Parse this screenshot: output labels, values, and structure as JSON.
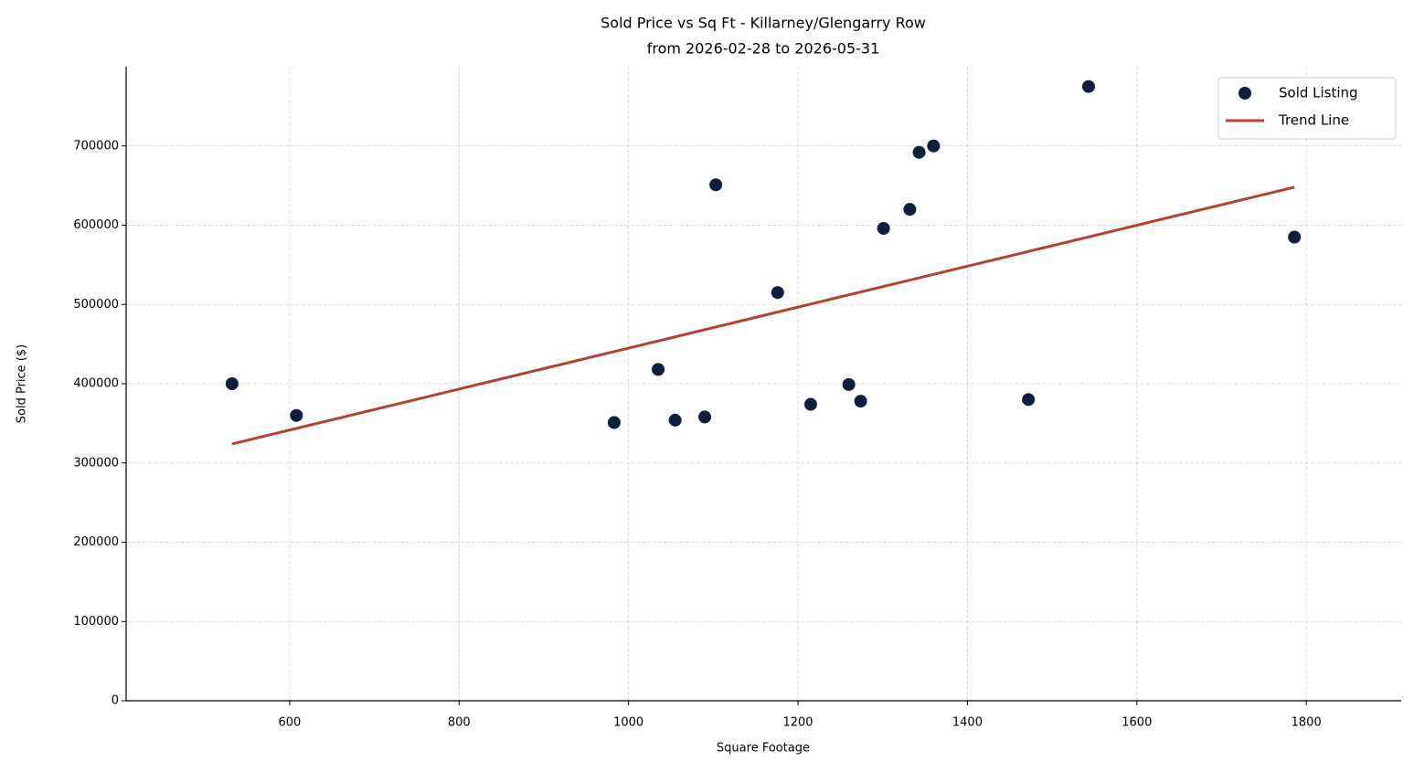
{
  "chart_data": {
    "type": "scatter",
    "title": "Sold Price vs Sq Ft - Killarney/Glengarry Row",
    "subtitle": "from 2026-02-28 to 2026-05-31",
    "x_label": "Square Footage",
    "y_label": "Sold Price ($)",
    "xlim": [
      407,
      1912
    ],
    "ylim": [
      0,
      800000
    ],
    "xticks": [
      600,
      800,
      1000,
      1200,
      1400,
      1600,
      1800
    ],
    "yticks": [
      0,
      100000,
      200000,
      300000,
      400000,
      500000,
      600000,
      700000
    ],
    "grid": true,
    "legend": "upper right",
    "series": [
      {
        "name": "Sold Listing",
        "type": "scatter",
        "color": "#0d1f3c",
        "x": [
          532,
          608,
          983,
          1035,
          1055,
          1090,
          1103,
          1176,
          1215,
          1260,
          1274,
          1301,
          1332,
          1343,
          1360,
          1472,
          1543,
          1786
        ],
        "values": [
          400000,
          360000,
          351000,
          418000,
          354000,
          358000,
          651000,
          515000,
          374000,
          399000,
          378000,
          596000,
          620000,
          692000,
          700000,
          380000,
          775000,
          585000
        ]
      },
      {
        "name": "Trend Line",
        "type": "line",
        "color": "#b5402f",
        "x": [
          532,
          1786
        ],
        "values": [
          324000,
          648000
        ]
      }
    ]
  }
}
